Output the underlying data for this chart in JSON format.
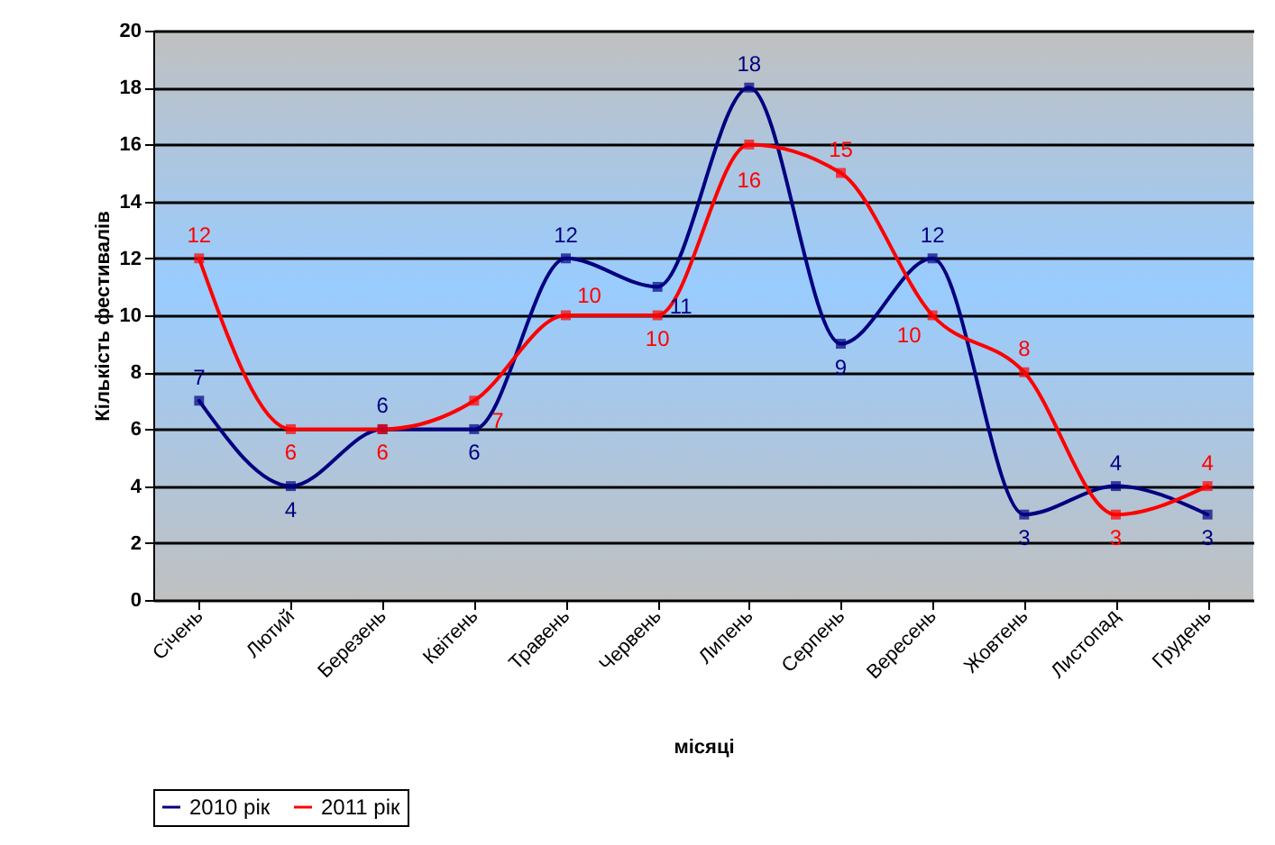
{
  "chart_data": {
    "type": "line",
    "xlabel": "місяці",
    "ylabel": "Кількість фестивалів",
    "categories": [
      "Січень",
      "Лютий",
      "Березень",
      "Квітень",
      "Травень",
      "Червень",
      "Липень",
      "Серпень",
      "Вересень",
      "Жовтень",
      "Листопад",
      "Грудень"
    ],
    "series": [
      {
        "name": "2010 рік",
        "color": "#000080",
        "values": [
          7,
          4,
          6,
          6,
          12,
          11,
          18,
          9,
          12,
          3,
          4,
          3
        ]
      },
      {
        "name": "2011 рік",
        "color": "#ff0000",
        "values": [
          12,
          6,
          6,
          7,
          10,
          10,
          16,
          15,
          10,
          8,
          3,
          4
        ]
      }
    ],
    "ylim": [
      0,
      20
    ],
    "yticks": [
      0,
      2,
      4,
      6,
      8,
      10,
      12,
      14,
      16,
      18,
      20
    ],
    "grid": "y",
    "legend": "bottom",
    "marker": "square",
    "data_labels": true
  }
}
